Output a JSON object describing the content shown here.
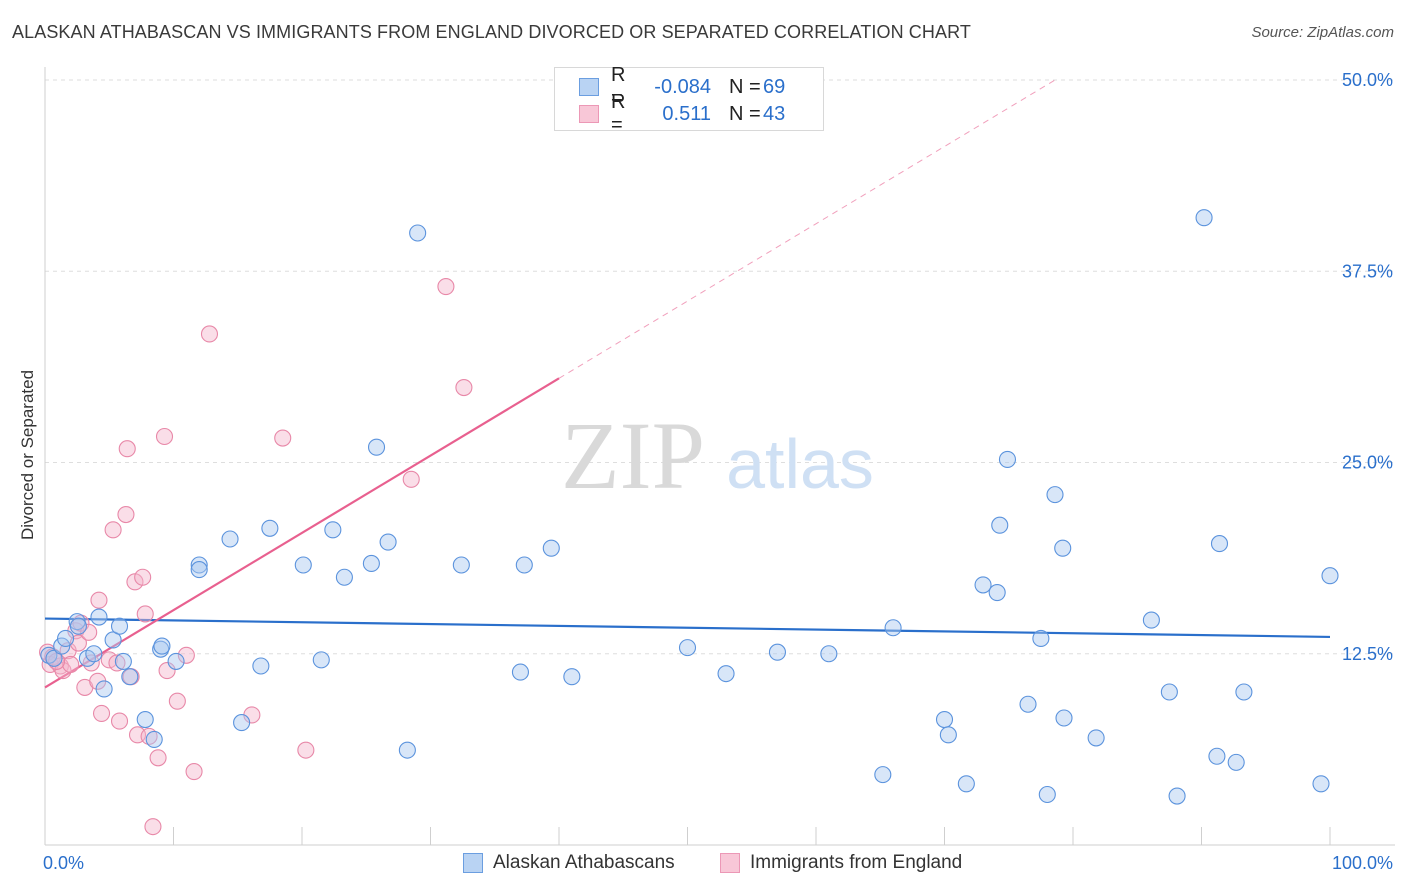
{
  "header": {
    "title": "ALASKAN ATHABASCAN VS IMMIGRANTS FROM ENGLAND DIVORCED OR SEPARATED CORRELATION CHART",
    "source": "Source: ZipAtlas.com"
  },
  "legend": {
    "rows": [
      {
        "r_label": "R =",
        "r_value": "-0.084",
        "n_label": "N =",
        "n_value": "69"
      },
      {
        "r_label": "R =",
        "r_value": "0.511",
        "n_label": "N =",
        "n_value": "43"
      }
    ]
  },
  "bottom_legend": {
    "series1": "Alaskan Athabascans",
    "series2": "Immigrants from England"
  },
  "watermark": {
    "zip": "ZIP",
    "atlas": "atlas"
  },
  "colors": {
    "blue_fill": "#a9c8f0",
    "blue_stroke": "#5b93dd",
    "blue_line": "#2a6fcb",
    "pink_fill": "#f5b6cb",
    "pink_stroke": "#e888a8",
    "pink_line": "#e8608f",
    "tick_text": "#2a6fcb"
  },
  "chart_data": {
    "type": "scatter",
    "title": "ALASKAN ATHABASCAN VS IMMIGRANTS FROM ENGLAND DIVORCED OR SEPARATED CORRELATION CHART",
    "xlabel": "",
    "ylabel": "Divorced or Separated",
    "xlim": [
      0,
      100
    ],
    "ylim": [
      0,
      50
    ],
    "x_tick_labels": [
      "0.0%",
      "100.0%"
    ],
    "y_ticks": [
      12.5,
      25.0,
      37.5,
      50.0
    ],
    "y_tick_labels": [
      "12.5%",
      "25.0%",
      "37.5%",
      "50.0%"
    ],
    "grid": true,
    "series": [
      {
        "name": "Alaskan Athabascans",
        "color": "#a9c8f0",
        "trend": {
          "x": [
            0,
            100
          ],
          "y": [
            14.8,
            13.6
          ]
        },
        "points": [
          [
            0.3,
            12.4
          ],
          [
            0.7,
            12.2
          ],
          [
            1.3,
            13.0
          ],
          [
            1.6,
            13.5
          ],
          [
            2.5,
            14.6
          ],
          [
            2.6,
            14.3
          ],
          [
            3.3,
            12.2
          ],
          [
            3.8,
            12.5
          ],
          [
            4.2,
            14.9
          ],
          [
            4.6,
            10.2
          ],
          [
            5.3,
            13.4
          ],
          [
            5.8,
            14.3
          ],
          [
            6.1,
            12.0
          ],
          [
            6.6,
            11.0
          ],
          [
            7.8,
            8.2
          ],
          [
            8.5,
            6.9
          ],
          [
            9.0,
            12.8
          ],
          [
            9.1,
            13.0
          ],
          [
            10.2,
            12.0
          ],
          [
            12.0,
            18.3
          ],
          [
            12.0,
            18.0
          ],
          [
            14.4,
            20.0
          ],
          [
            15.3,
            8.0
          ],
          [
            16.8,
            11.7
          ],
          [
            17.5,
            20.7
          ],
          [
            20.1,
            18.3
          ],
          [
            21.5,
            12.1
          ],
          [
            22.4,
            20.6
          ],
          [
            23.3,
            17.5
          ],
          [
            25.4,
            18.4
          ],
          [
            25.8,
            26.0
          ],
          [
            26.7,
            19.8
          ],
          [
            29.0,
            40.0
          ],
          [
            28.2,
            6.2
          ],
          [
            32.4,
            18.3
          ],
          [
            37.0,
            11.3
          ],
          [
            37.3,
            18.3
          ],
          [
            39.4,
            19.4
          ],
          [
            41.0,
            11.0
          ],
          [
            50.0,
            12.9
          ],
          [
            53.0,
            11.2
          ],
          [
            57.0,
            12.6
          ],
          [
            61.0,
            12.5
          ],
          [
            65.2,
            4.6
          ],
          [
            66.0,
            14.2
          ],
          [
            70.0,
            8.2
          ],
          [
            70.3,
            7.2
          ],
          [
            71.7,
            4.0
          ],
          [
            73.0,
            17.0
          ],
          [
            74.1,
            16.5
          ],
          [
            74.3,
            20.9
          ],
          [
            74.9,
            25.2
          ],
          [
            76.5,
            9.2
          ],
          [
            77.5,
            13.5
          ],
          [
            78.0,
            3.3
          ],
          [
            78.6,
            22.9
          ],
          [
            79.2,
            19.4
          ],
          [
            79.3,
            8.3
          ],
          [
            81.8,
            7.0
          ],
          [
            86.1,
            14.7
          ],
          [
            87.5,
            10.0
          ],
          [
            88.1,
            3.2
          ],
          [
            90.2,
            41.0
          ],
          [
            91.2,
            5.8
          ],
          [
            91.4,
            19.7
          ],
          [
            92.7,
            5.4
          ],
          [
            93.3,
            10.0
          ],
          [
            99.3,
            4.0
          ],
          [
            100.0,
            17.6
          ]
        ]
      },
      {
        "name": "Immigrants from England",
        "color": "#f5b6cb",
        "trend": {
          "x": [
            0,
            40
          ],
          "y": [
            10.3,
            30.5
          ]
        },
        "trend_extension": {
          "x": [
            40,
            78.6
          ],
          "y": [
            30.5,
            50.0
          ]
        },
        "points": [
          [
            0.2,
            12.6
          ],
          [
            0.4,
            11.8
          ],
          [
            0.6,
            12.3
          ],
          [
            1.2,
            11.7
          ],
          [
            1.4,
            11.4
          ],
          [
            1.8,
            12.7
          ],
          [
            2.0,
            11.8
          ],
          [
            2.4,
            14.0
          ],
          [
            2.6,
            13.2
          ],
          [
            2.8,
            14.5
          ],
          [
            3.1,
            10.3
          ],
          [
            3.4,
            13.9
          ],
          [
            3.6,
            11.9
          ],
          [
            4.1,
            10.7
          ],
          [
            4.2,
            16.0
          ],
          [
            4.4,
            8.6
          ],
          [
            5.0,
            12.1
          ],
          [
            5.3,
            20.6
          ],
          [
            5.6,
            11.9
          ],
          [
            5.8,
            8.1
          ],
          [
            6.3,
            21.6
          ],
          [
            6.4,
            25.9
          ],
          [
            6.7,
            11.0
          ],
          [
            7.0,
            17.2
          ],
          [
            7.2,
            7.2
          ],
          [
            7.6,
            17.5
          ],
          [
            7.8,
            15.1
          ],
          [
            8.1,
            7.1
          ],
          [
            8.4,
            1.2
          ],
          [
            8.8,
            5.7
          ],
          [
            9.3,
            26.7
          ],
          [
            9.5,
            11.4
          ],
          [
            10.3,
            9.4
          ],
          [
            11.0,
            12.4
          ],
          [
            11.6,
            4.8
          ],
          [
            12.8,
            33.4
          ],
          [
            16.1,
            8.5
          ],
          [
            18.5,
            26.6
          ],
          [
            20.3,
            6.2
          ],
          [
            28.5,
            23.9
          ],
          [
            31.2,
            36.5
          ],
          [
            32.6,
            29.9
          ],
          [
            0.9,
            12.0
          ]
        ]
      }
    ]
  }
}
